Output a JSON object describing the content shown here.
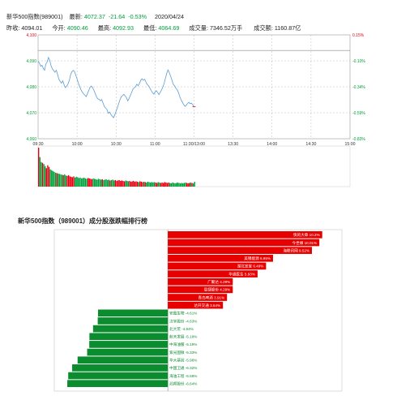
{
  "header": {
    "name": "新华500指数(989001)",
    "latest_label": "最新:",
    "latest": "4072.37",
    "change": "-21.64",
    "change_pct": "-0.53%",
    "date": "2020/04/24",
    "prev_close_label": "昨收:",
    "prev_close": "4094.01",
    "open_label": "今开:",
    "open": "4090.46",
    "high_label": "最高:",
    "high": "4092.93",
    "low_label": "最低:",
    "low": "4064.69",
    "volume_label": "成交量:",
    "volume": "7346.52万手",
    "amount_label": "成交额:",
    "amount": "1160.87亿"
  },
  "ranking_title": "新华500指数（989001）成分股涨跌幅排行榜",
  "colors": {
    "price_line": "#5b9bd5",
    "up": "#e4000f",
    "down": "#00a03c",
    "rank_up": "#e60000",
    "rank_down": "#0b8c2e",
    "grid": "#bbbbbb"
  },
  "chart_data": [
    {
      "type": "line",
      "y_ticks": [
        "4,100",
        "4,090",
        "4,080",
        "4,070",
        "4,060"
      ],
      "y_right_ticks": [
        "0.15%",
        "-0.10%",
        "-0.34%",
        "-0.59%",
        "-0.83%"
      ],
      "x_ticks": [
        "09:30",
        "10:00",
        "10:30",
        "11:00",
        "11:30/13:00",
        "13:30",
        "14:00",
        "14:30",
        "15:00"
      ],
      "ylim": [
        4060,
        4100
      ],
      "prev_close": 4094.01,
      "session_minutes": 240,
      "price": [
        4089.8,
        4089.2,
        4087.9,
        4088.3,
        4087.1,
        4086.4,
        4088.8,
        4089.6,
        4091.3,
        4090.2,
        4088.1,
        4086.9,
        4086.3,
        4085.6,
        4086.4,
        4084.8,
        4082.9,
        4082.1,
        4081.4,
        4082.3,
        4080.8,
        4079.7,
        4080.2,
        4081.1,
        4082.4,
        4084.6,
        4085.8,
        4086.3,
        4085.9,
        4084.5,
        4083.0,
        4081.4,
        4080.1,
        4078.9,
        4078.0,
        4077.3,
        4076.8,
        4076.2,
        4077.4,
        4078.6,
        4079.8,
        4080.3,
        4079.7,
        4078.6,
        4077.4,
        4076.1,
        4075.3,
        4075.2,
        4074.6,
        4075.1,
        4073.7,
        4072.4,
        4071.8,
        4071.3,
        4069.8,
        4070.3,
        4069.4,
        4068.7,
        4068.1,
        4069.2,
        4070.6,
        4071.9,
        4073.5,
        4075.0,
        4076.2,
        4076.6,
        4077.1,
        4076.5,
        4075.8,
        4074.6,
        4075.5,
        4076.7,
        4077.9,
        4079.1,
        4079.6,
        4080.1,
        4081.0,
        4080.4,
        4081.3,
        4082.5,
        4083.1,
        4082.5,
        4082.9,
        4081.8,
        4080.9,
        4080.4,
        4079.5,
        4078.6,
        4077.8,
        4077.2,
        4077.9,
        4078.5,
        4077.8,
        4077.0,
        4077.9,
        4078.8,
        4079.9,
        4081.4,
        4083.3,
        4085.2,
        4086.5,
        4085.4,
        4084.1,
        4082.6,
        4081.0,
        4080.4,
        4079.5,
        4078.9,
        4077.8,
        4076.2,
        4075.0,
        4074.1,
        4073.2,
        4072.5,
        4072.9,
        4073.6,
        4074.0,
        4073.5,
        4073.7,
        4073.1,
        4072.4
      ],
      "volume": [
        95,
        72,
        60,
        58,
        55,
        50,
        45,
        52,
        48,
        42,
        40,
        38,
        36,
        34,
        33,
        32,
        31,
        30,
        29,
        28,
        30,
        27,
        26,
        28,
        25,
        24,
        23,
        25,
        22,
        24,
        23,
        21,
        22,
        20,
        21,
        22,
        20,
        19,
        21,
        20,
        19,
        18,
        20,
        19,
        18,
        17,
        19,
        18,
        17,
        18,
        16,
        17,
        18,
        16,
        17,
        15,
        16,
        17,
        15,
        16,
        14,
        15,
        16,
        14,
        15,
        14,
        13,
        15,
        14,
        13,
        14,
        12,
        13,
        14,
        12,
        13,
        12,
        11,
        13,
        12,
        11,
        12,
        11,
        10,
        12,
        11,
        10,
        11,
        10,
        11,
        10,
        9,
        11,
        10,
        9,
        10,
        9,
        11,
        10,
        9,
        10,
        9,
        8,
        10,
        9,
        8,
        9,
        10,
        9,
        8,
        9,
        8,
        9,
        10,
        9,
        8,
        9,
        10,
        9,
        8,
        12
      ],
      "volume_up": [
        1,
        0,
        0,
        1,
        0,
        0,
        1,
        1,
        1,
        0,
        0,
        0,
        0,
        0,
        1,
        0,
        0,
        0,
        0,
        1,
        0,
        0,
        1,
        1,
        1,
        1,
        1,
        1,
        0,
        0,
        0,
        0,
        0,
        0,
        0,
        0,
        0,
        0,
        1,
        1,
        1,
        1,
        0,
        0,
        0,
        0,
        0,
        0,
        0,
        1,
        0,
        0,
        0,
        0,
        0,
        1,
        0,
        0,
        0,
        1,
        1,
        1,
        1,
        1,
        1,
        1,
        1,
        0,
        0,
        0,
        1,
        1,
        1,
        1,
        1,
        1,
        1,
        0,
        1,
        1,
        1,
        0,
        1,
        0,
        0,
        0,
        0,
        0,
        0,
        0,
        1,
        1,
        0,
        0,
        1,
        1,
        1,
        1,
        1,
        1,
        1,
        0,
        0,
        0,
        0,
        0,
        0,
        0,
        0,
        0,
        0,
        0,
        0,
        0,
        1,
        1,
        1,
        0,
        1,
        0,
        0
      ]
    },
    {
      "type": "bar",
      "items": [
        {
          "label": "快的大章 10.2%",
          "value": 10.2
        },
        {
          "label": "今世缘  10.01%",
          "value": 10.01
        },
        {
          "label": "海联讯网 9.52%",
          "value": 9.52
        },
        {
          "label": "美锦能源 6.95%",
          "value": 6.95
        },
        {
          "label": "湖北宜宝 6.49%",
          "value": 6.49
        },
        {
          "label": "华通医生 5.93%",
          "value": 5.93
        },
        {
          "label": "广聚达 4.29%",
          "value": 4.29
        },
        {
          "label": "恩捷股份 4.29%",
          "value": 4.29
        },
        {
          "label": "青岛啤酒 3.91%",
          "value": 3.91
        },
        {
          "label": "达开交通 3.64%",
          "value": 3.64
        },
        {
          "label": "安图生物 -4.61%",
          "value": -4.61
        },
        {
          "label": "汉宇股份 -4.63%",
          "value": -4.63
        },
        {
          "label": "北大荒 -4.94%",
          "value": -4.94
        },
        {
          "label": "航天发展 -5.18%",
          "value": -5.18
        },
        {
          "label": "中海油服 -5.19%",
          "value": -5.19
        },
        {
          "label": "紫光国微 -5.33%",
          "value": -5.33
        },
        {
          "label": "华大基因 -5.96%",
          "value": -5.96
        },
        {
          "label": "中国卫通 -6.32%",
          "value": -6.32
        },
        {
          "label": "海油工程 -6.58%",
          "value": -6.58
        },
        {
          "label": "润邦股份 -6.64%",
          "value": -6.64
        }
      ],
      "xlim": [
        -7.5,
        11.5
      ]
    }
  ]
}
